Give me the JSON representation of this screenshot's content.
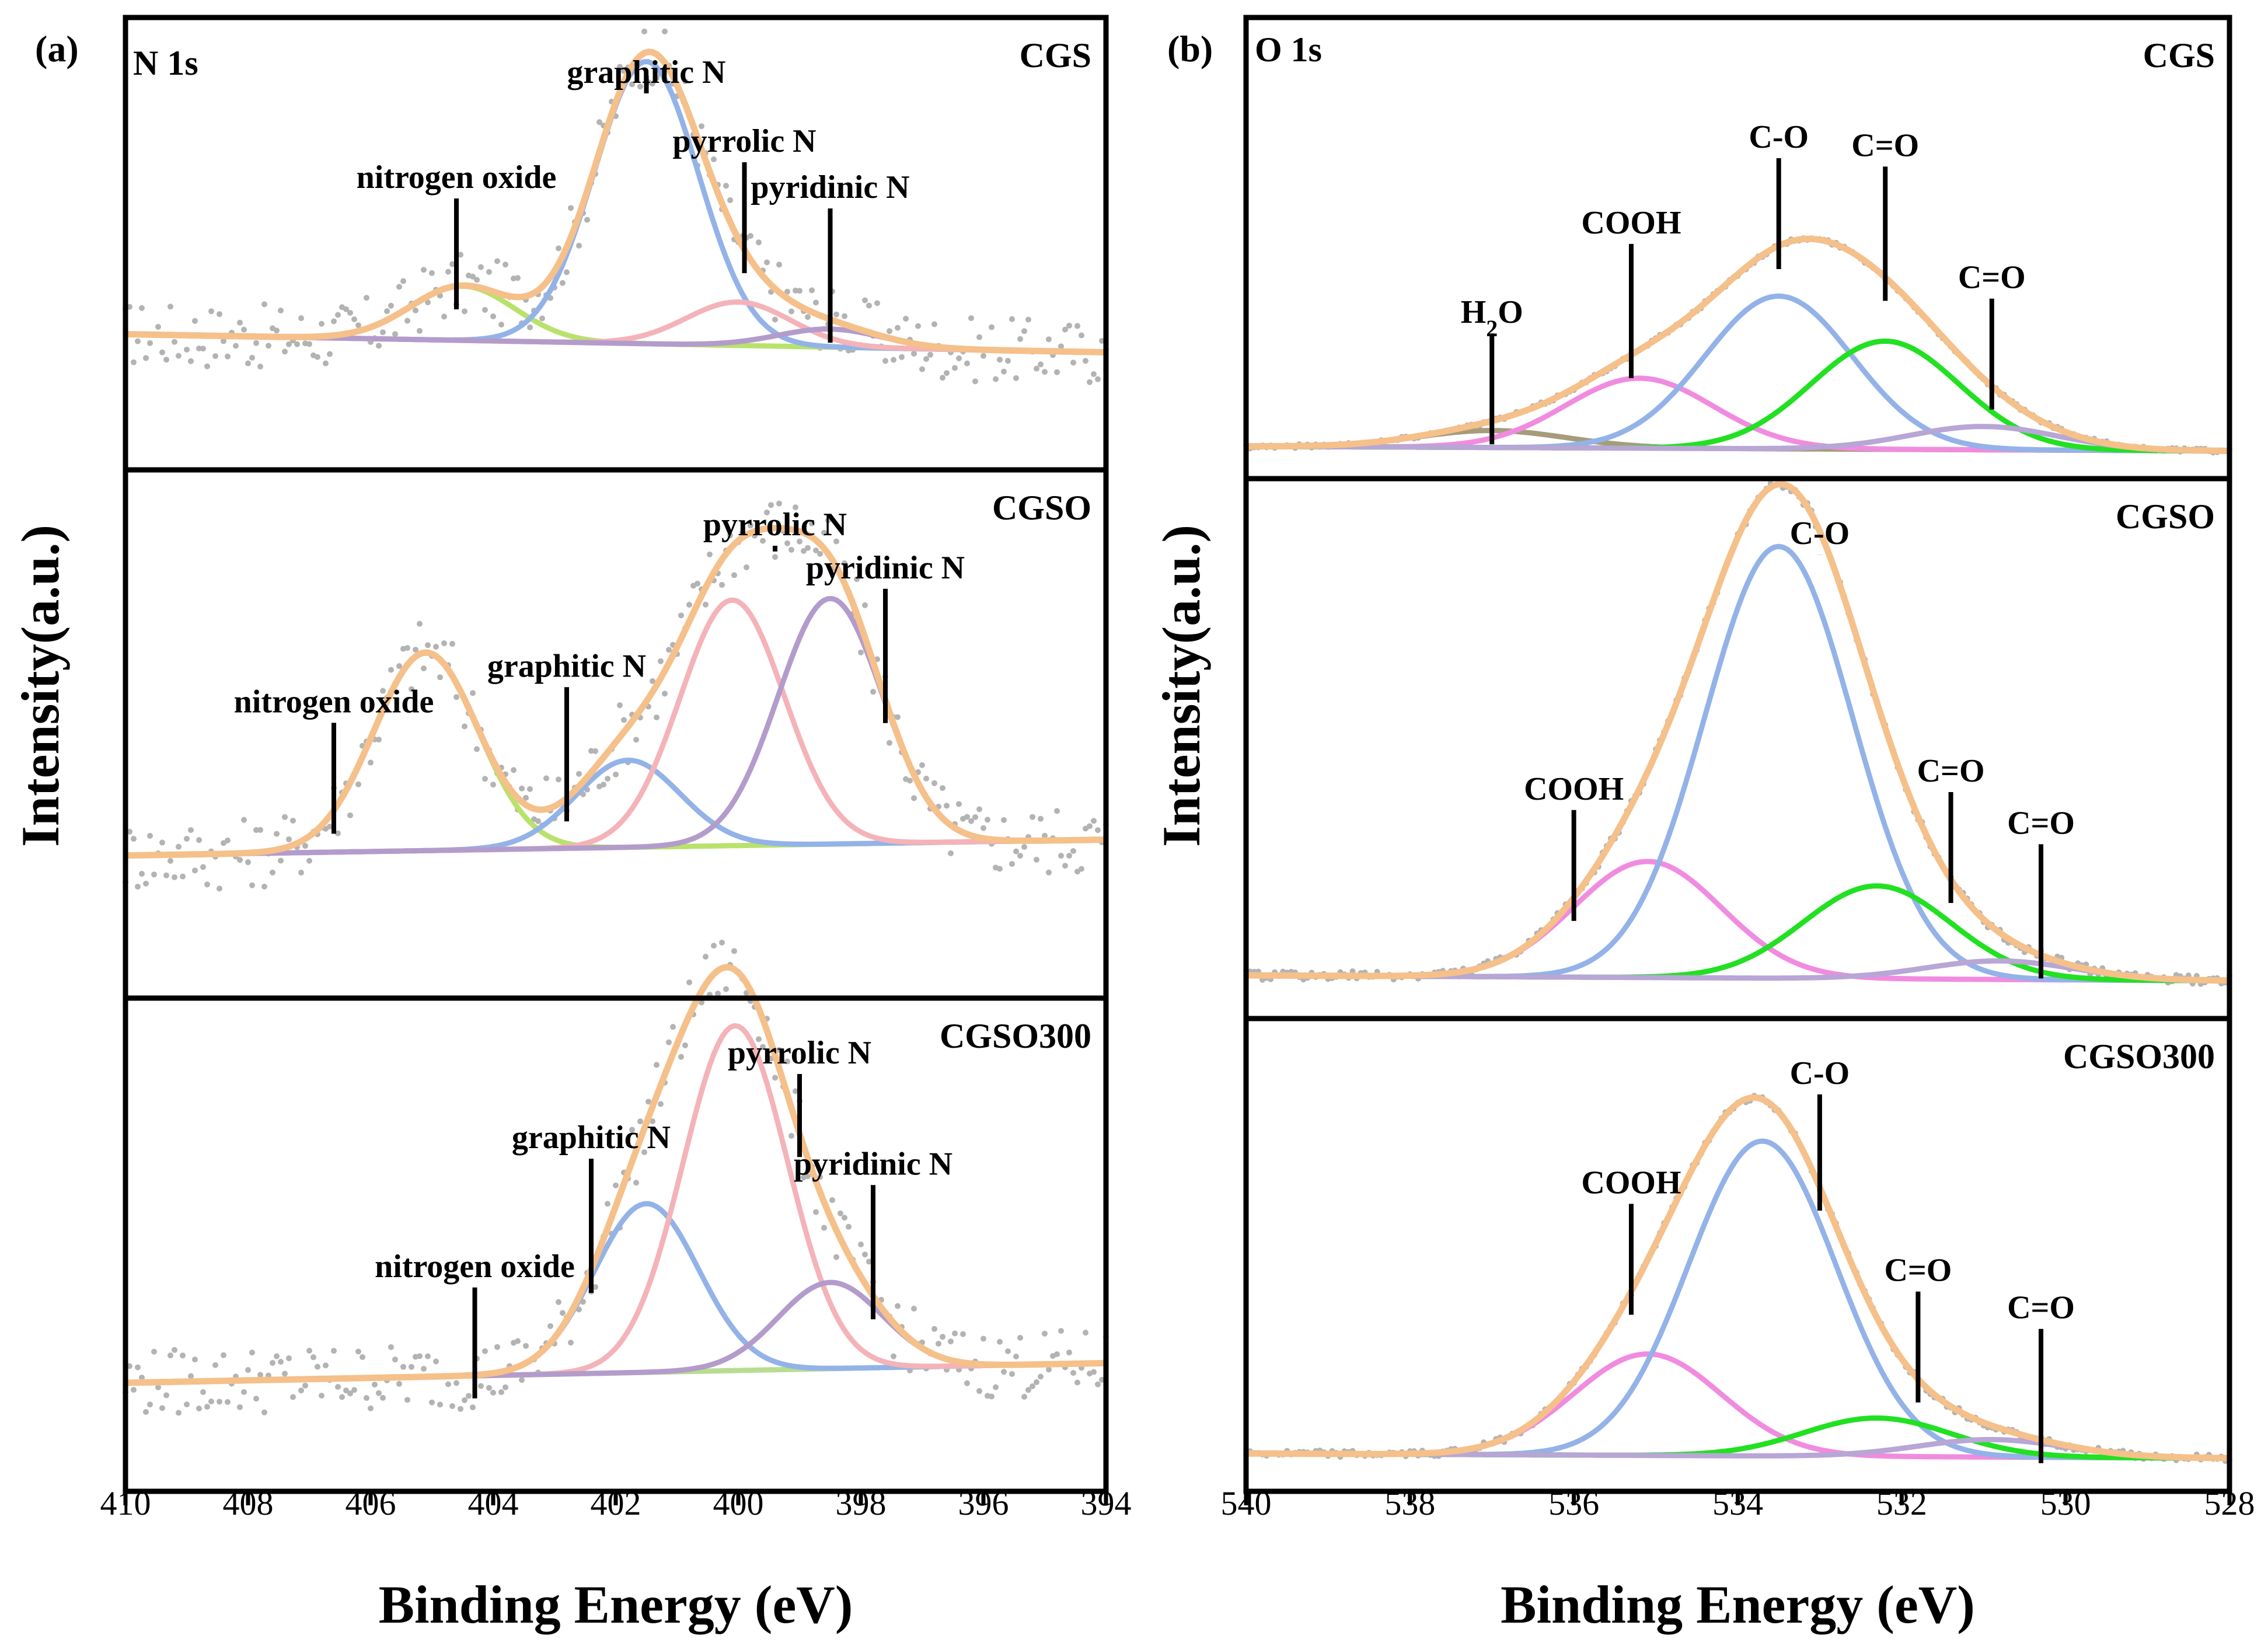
{
  "colors": {
    "envelope": "#f5c08a",
    "data_points": "#b3b3b3",
    "graphitic_N": "#93b3e8",
    "pyrrolic_N": "#f4b3b8",
    "pyridinic_N": "#b39ccb",
    "nitrogen_oxide": "#b9e26c",
    "background": "#b8dd90",
    "C_O": "#93b3e8",
    "C_eq_O_green": "#22e022",
    "C_eq_O_purple": "#b8a6d6",
    "COOH": "#f08ce0",
    "H2O": "#a69c7a"
  },
  "chart_data": [
    {
      "type": "line",
      "panel": "(a)",
      "region": "N 1s",
      "xlabel": "Binding Energy (eV)",
      "ylabel": "Intensity(a.u.)",
      "xlim": [
        410,
        394
      ],
      "x_reversed": true,
      "xticks": [
        "410",
        "408",
        "406",
        "404",
        "402",
        "400",
        "398",
        "396",
        "394"
      ],
      "subplots": [
        {
          "sample": "CGS",
          "peaks": [
            {
              "component": "nitrogen oxide",
              "center_eV": 404.5,
              "height": 0.15,
              "color": "nitrogen_oxide"
            },
            {
              "component": "graphitic N",
              "center_eV": 401.5,
              "height": 0.78,
              "color": "graphitic_N"
            },
            {
              "component": "pyrrolic N",
              "center_eV": 400.0,
              "height": 0.12,
              "color": "pyrrolic_N"
            },
            {
              "component": "pyridinic N",
              "center_eV": 398.5,
              "height": 0.05,
              "color": "pyridinic_N"
            }
          ],
          "annotations": [
            {
              "text": "nitrogen oxide",
              "x_eV": 404.6
            },
            {
              "text": "graphitic N",
              "x_eV": 401.5
            },
            {
              "text": "pyrrolic N",
              "x_eV": 399.9
            },
            {
              "text": "pyridinic N",
              "x_eV": 398.5
            }
          ]
        },
        {
          "sample": "CGSO",
          "peaks": [
            {
              "component": "nitrogen oxide",
              "center_eV": 405.1,
              "height": 0.5,
              "color": "nitrogen_oxide"
            },
            {
              "component": "graphitic N",
              "center_eV": 401.8,
              "height": 0.22,
              "color": "graphitic_N"
            },
            {
              "component": "pyrrolic N",
              "center_eV": 400.1,
              "height": 0.62,
              "color": "pyrrolic_N"
            },
            {
              "component": "pyridinic N",
              "center_eV": 398.5,
              "height": 0.62,
              "color": "pyridinic_N"
            }
          ],
          "annotations": [
            {
              "text": "nitrogen oxide",
              "x_eV": 406.6
            },
            {
              "text": "graphitic N",
              "x_eV": 402.8
            },
            {
              "text": "pyrrolic N",
              "x_eV": 399.4
            },
            {
              "text": "pyridinic N",
              "x_eV": 397.6
            }
          ]
        },
        {
          "sample": "CGSO300",
          "peaks": [
            {
              "component": "nitrogen oxide",
              "center_eV": 404.3,
              "height": 0.0,
              "color": "background"
            },
            {
              "component": "graphitic N",
              "center_eV": 401.5,
              "height": 0.45,
              "color": "graphitic_N"
            },
            {
              "component": "pyrrolic N",
              "center_eV": 400.05,
              "height": 0.92,
              "color": "pyrrolic_N"
            },
            {
              "component": "pyridinic N",
              "center_eV": 398.5,
              "height": 0.23,
              "color": "pyridinic_N"
            }
          ],
          "annotations": [
            {
              "text": "nitrogen oxide",
              "x_eV": 404.3
            },
            {
              "text": "graphitic N",
              "x_eV": 402.4
            },
            {
              "text": "pyrrolic N",
              "x_eV": 399.0
            },
            {
              "text": "pyridinic N",
              "x_eV": 397.8
            }
          ]
        }
      ]
    },
    {
      "type": "line",
      "panel": "(b)",
      "region": "O 1s",
      "xlabel": "Binding Energy (eV)",
      "ylabel": "Intensity(a.u.)",
      "xlim": [
        540,
        528
      ],
      "x_reversed": true,
      "xticks": [
        "540",
        "538",
        "536",
        "534",
        "532",
        "530",
        "528"
      ],
      "subplots": [
        {
          "sample": "CGS",
          "peaks": [
            {
              "component": "H2O",
              "center_eV": 537.0,
              "height": 0.08,
              "color": "H2O"
            },
            {
              "component": "COOH",
              "center_eV": 535.2,
              "height": 0.33,
              "color": "COOH"
            },
            {
              "component": "C-O",
              "center_eV": 533.5,
              "height": 0.72,
              "color": "C_O"
            },
            {
              "component": "C=O",
              "center_eV": 532.2,
              "height": 0.51,
              "color": "C_eq_O_green"
            },
            {
              "component": "C=O",
              "center_eV": 531.0,
              "height": 0.11,
              "color": "C_eq_O_purple"
            }
          ],
          "annotations": [
            {
              "text": "H",
              "sub": "2",
              "tail": "O",
              "x_eV": 537.0
            },
            {
              "text": "COOH",
              "x_eV": 535.3
            },
            {
              "text": "C-O",
              "x_eV": 533.5
            },
            {
              "text": "C=O",
              "x_eV": 532.2
            },
            {
              "text": "C=O",
              "x_eV": 530.9
            }
          ]
        },
        {
          "sample": "CGSO",
          "peaks": [
            {
              "component": "COOH",
              "center_eV": 535.1,
              "height": 0.25,
              "color": "COOH"
            },
            {
              "component": "C-O",
              "center_eV": 533.5,
              "height": 0.93,
              "color": "C_O"
            },
            {
              "component": "C=O",
              "center_eV": 532.3,
              "height": 0.2,
              "color": "C_eq_O_green"
            },
            {
              "component": "C=O",
              "center_eV": 530.8,
              "height": 0.04,
              "color": "C_eq_O_purple"
            }
          ],
          "annotations": [
            {
              "text": "COOH",
              "x_eV": 536.0
            },
            {
              "text": "C-O",
              "x_eV": 533.0
            },
            {
              "text": "C=O",
              "x_eV": 531.4
            },
            {
              "text": "C=O",
              "x_eV": 530.3
            }
          ]
        },
        {
          "sample": "CGSO300",
          "peaks": [
            {
              "component": "COOH",
              "center_eV": 535.1,
              "height": 0.29,
              "color": "COOH"
            },
            {
              "component": "C-O",
              "center_eV": 533.7,
              "height": 0.9,
              "color": "C_O"
            },
            {
              "component": "C=O",
              "center_eV": 532.3,
              "height": 0.11,
              "color": "C_eq_O_green"
            },
            {
              "component": "C=O",
              "center_eV": 530.9,
              "height": 0.05,
              "color": "C_eq_O_purple"
            }
          ],
          "annotations": [
            {
              "text": "COOH",
              "x_eV": 535.3
            },
            {
              "text": "C-O",
              "x_eV": 533.0
            },
            {
              "text": "C=O",
              "x_eV": 531.8
            },
            {
              "text": "C=O",
              "x_eV": 530.3
            }
          ]
        }
      ]
    }
  ]
}
